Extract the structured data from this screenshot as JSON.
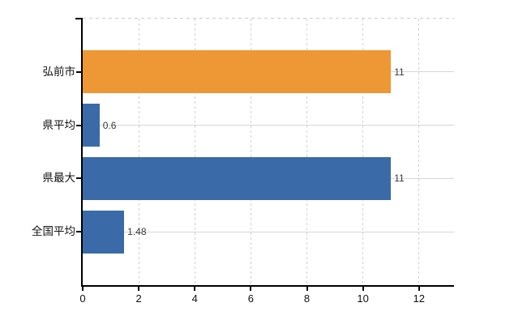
{
  "chart": {
    "background": "#ffffff",
    "axis_color": "#000000",
    "vertical_grid_color": "#cfd3cd",
    "horizontal_grid_color": "#d4d8d0",
    "category_label_color": "#111111",
    "value_label_color": "#3a3a3a"
  },
  "chart_data": {
    "type": "bar",
    "orientation": "horizontal",
    "title": "",
    "xlabel": "",
    "ylabel": "",
    "legend": "none",
    "categories": [
      "弘前市",
      "県平均",
      "県最大",
      "全国平均"
    ],
    "values": [
      11,
      0.6,
      11,
      1.48
    ],
    "value_labels": [
      "11",
      "0.6",
      "11",
      "1.48"
    ],
    "bar_colors": [
      "#ee9735",
      "#3a6ba8",
      "#3a6ba8",
      "#3a6ba8"
    ],
    "x_tick_values": [
      0,
      2,
      4,
      6,
      8,
      10,
      12
    ],
    "x_tick_labels": [
      "0",
      "2",
      "4",
      "6",
      "8",
      "10",
      "12"
    ],
    "xlim": [
      0,
      13.25
    ],
    "grid": "vertical dashed at x ticks, horizontal solid at category centers"
  }
}
